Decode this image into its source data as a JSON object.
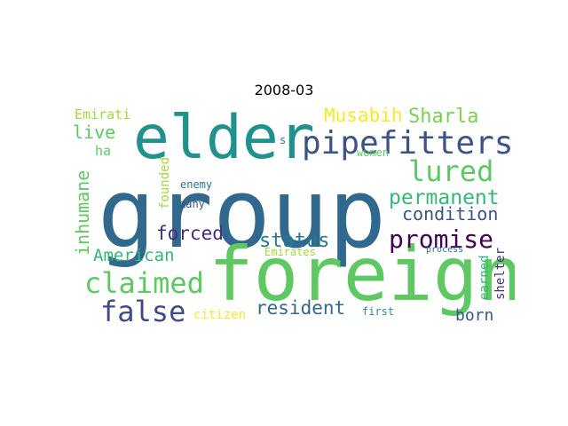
{
  "chart_data": {
    "type": "wordcloud",
    "title": "2008-03",
    "background": "#ffffff",
    "words": [
      {
        "text": "group",
        "color": "#31688e",
        "weight": 1.0
      },
      {
        "text": "foreign",
        "color": "#5ec962",
        "weight": 0.82
      },
      {
        "text": "elder",
        "color": "#21918c",
        "weight": 0.72
      },
      {
        "text": "pipefitters",
        "color": "#3b528b",
        "weight": 0.48
      },
      {
        "text": "claimed",
        "color": "#5ec962",
        "weight": 0.42
      },
      {
        "text": "false",
        "color": "#3e4a89",
        "weight": 0.42
      },
      {
        "text": "lured",
        "color": "#5ec962",
        "weight": 0.4
      },
      {
        "text": "promise",
        "color": "#440154",
        "weight": 0.36
      },
      {
        "text": "permanent",
        "color": "#35b779",
        "weight": 0.3
      },
      {
        "text": "status",
        "color": "#2a788e",
        "weight": 0.3
      },
      {
        "text": "Sharla",
        "color": "#7ad151",
        "weight": 0.3
      },
      {
        "text": "Musabih",
        "color": "#fde725",
        "weight": 0.28
      },
      {
        "text": "inhumane",
        "color": "#5ec962",
        "weight": 0.28
      },
      {
        "text": "forced",
        "color": "#472d7b",
        "weight": 0.28
      },
      {
        "text": "resident",
        "color": "#31688e",
        "weight": 0.28
      },
      {
        "text": "condition",
        "color": "#3b528b",
        "weight": 0.26
      },
      {
        "text": "live",
        "color": "#5ec962",
        "weight": 0.26
      },
      {
        "text": "American",
        "color": "#35b779",
        "weight": 0.26
      },
      {
        "text": "born",
        "color": "#3b528b",
        "weight": 0.24
      },
      {
        "text": "Emirati",
        "color": "#a0da39",
        "weight": 0.2
      },
      {
        "text": "ha",
        "color": "#5ec962",
        "weight": 0.2
      },
      {
        "text": "founded",
        "color": "#a0da39",
        "weight": 0.18
      },
      {
        "text": "citizen",
        "color": "#fde725",
        "weight": 0.18
      },
      {
        "text": "enemy",
        "color": "#2a788e",
        "weight": 0.16
      },
      {
        "text": "many",
        "color": "#3b528b",
        "weight": 0.16
      },
      {
        "text": "women",
        "color": "#5ec962",
        "weight": 0.16
      },
      {
        "text": "shelter",
        "color": "#472d7b",
        "weight": 0.16
      },
      {
        "text": "earned",
        "color": "#35b779",
        "weight": 0.16
      },
      {
        "text": "Emirates",
        "color": "#a0da39",
        "weight": 0.16
      },
      {
        "text": "first",
        "color": "#21918c",
        "weight": 0.16
      },
      {
        "text": "process",
        "color": "#2a788e",
        "weight": 0.14
      },
      {
        "text": "s",
        "color": "#2a788e",
        "weight": 0.14
      }
    ]
  }
}
